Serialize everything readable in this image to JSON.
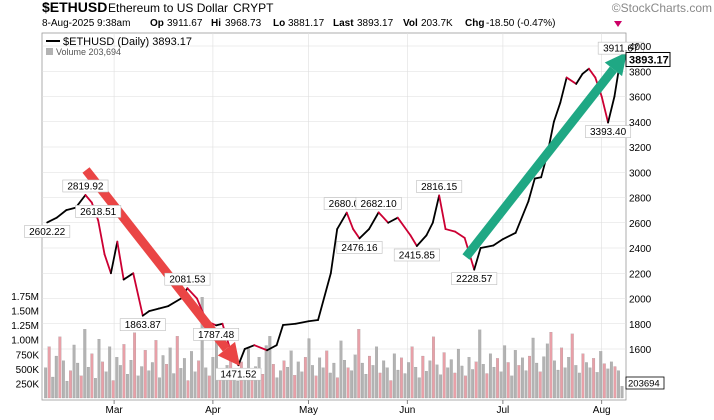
{
  "header": {
    "symbol": "$ETHUSD",
    "name": "Ethereum to US Dollar",
    "exchange": "CRYPT",
    "brand": "©StockCharts.com",
    "quote": {
      "date": "8-Aug-2025 9:38am",
      "op_label": "Op",
      "op": "3911.67",
      "hi_label": "Hi",
      "hi": "3968.73",
      "lo_label": "Lo",
      "lo": "3881.17",
      "last_label": "Last",
      "last": "3893.17",
      "vol_label": "Vol",
      "vol": "203.7K",
      "chg_label": "Chg",
      "chg": "-18.50 (-0.47%)"
    },
    "legend_price": "$ETHUSD (Daily) 3893.17",
    "legend_volume": "Volume 203,694"
  },
  "colors": {
    "price_up": "#000000",
    "price_down": "#cc0033",
    "volume_up": "#b3b3b3",
    "volume_down": "#e8a0a8",
    "red_arrow": "#ea4545",
    "green_arrow": "#1fa884",
    "grid": "#dedede"
  },
  "chart_data": {
    "type": "line",
    "title": "$ETHUSD (Daily) 3893.17",
    "x_axis_labels": [
      "Mar",
      "Apr",
      "May",
      "Jun",
      "Jul",
      "Aug"
    ],
    "y_axis_right": [
      1600,
      1800,
      2000,
      2200,
      2400,
      2600,
      2800,
      3000,
      3200,
      3400,
      3600,
      3800,
      4000
    ],
    "volume_axis_left": [
      "1.75M",
      "1.50M",
      "1.25M",
      "1.00M",
      "750K",
      "500K",
      "250K"
    ],
    "price_series": [
      {
        "date": "2025-02-08",
        "value": 2602.22
      },
      {
        "date": "2025-02-11",
        "value": 2640
      },
      {
        "date": "2025-02-14",
        "value": 2700
      },
      {
        "date": "2025-02-17",
        "value": 2720
      },
      {
        "date": "2025-02-20",
        "value": 2819.92
      },
      {
        "date": "2025-02-22",
        "value": 2760
      },
      {
        "date": "2025-02-24",
        "value": 2618.51
      },
      {
        "date": "2025-02-26",
        "value": 2350
      },
      {
        "date": "2025-02-28",
        "value": 2200
      },
      {
        "date": "2025-03-02",
        "value": 2450
      },
      {
        "date": "2025-03-04",
        "value": 2150
      },
      {
        "date": "2025-03-07",
        "value": 2200
      },
      {
        "date": "2025-03-10",
        "value": 1863.87
      },
      {
        "date": "2025-03-12",
        "value": 1900
      },
      {
        "date": "2025-03-15",
        "value": 1920
      },
      {
        "date": "2025-03-18",
        "value": 1940
      },
      {
        "date": "2025-03-22",
        "value": 2000
      },
      {
        "date": "2025-03-24",
        "value": 2081.53
      },
      {
        "date": "2025-03-27",
        "value": 2000
      },
      {
        "date": "2025-03-30",
        "value": 1820
      },
      {
        "date": "2025-04-02",
        "value": 1787.48
      },
      {
        "date": "2025-04-04",
        "value": 1800
      },
      {
        "date": "2025-04-07",
        "value": 1550
      },
      {
        "date": "2025-04-09",
        "value": 1471.52
      },
      {
        "date": "2025-04-11",
        "value": 1600
      },
      {
        "date": "2025-04-14",
        "value": 1630
      },
      {
        "date": "2025-04-18",
        "value": 1590
      },
      {
        "date": "2025-04-21",
        "value": 1630
      },
      {
        "date": "2025-04-23",
        "value": 1790
      },
      {
        "date": "2025-04-27",
        "value": 1800
      },
      {
        "date": "2025-05-01",
        "value": 1820
      },
      {
        "date": "2025-05-04",
        "value": 1830
      },
      {
        "date": "2025-05-08",
        "value": 2200
      },
      {
        "date": "2025-05-10",
        "value": 2550
      },
      {
        "date": "2025-05-13",
        "value": 2680.04
      },
      {
        "date": "2025-05-15",
        "value": 2550
      },
      {
        "date": "2025-05-17",
        "value": 2476.16
      },
      {
        "date": "2025-05-20",
        "value": 2550
      },
      {
        "date": "2025-05-23",
        "value": 2682.1
      },
      {
        "date": "2025-05-26",
        "value": 2600
      },
      {
        "date": "2025-05-29",
        "value": 2640
      },
      {
        "date": "2025-06-02",
        "value": 2500
      },
      {
        "date": "2025-06-04",
        "value": 2415.85
      },
      {
        "date": "2025-06-07",
        "value": 2500
      },
      {
        "date": "2025-06-09",
        "value": 2600
      },
      {
        "date": "2025-06-11",
        "value": 2816.15
      },
      {
        "date": "2025-06-13",
        "value": 2550
      },
      {
        "date": "2025-06-16",
        "value": 2530
      },
      {
        "date": "2025-06-19",
        "value": 2480
      },
      {
        "date": "2025-06-22",
        "value": 2228.57
      },
      {
        "date": "2025-06-24",
        "value": 2400
      },
      {
        "date": "2025-06-28",
        "value": 2420
      },
      {
        "date": "2025-07-01",
        "value": 2470
      },
      {
        "date": "2025-07-05",
        "value": 2520
      },
      {
        "date": "2025-07-09",
        "value": 2770
      },
      {
        "date": "2025-07-11",
        "value": 2950
      },
      {
        "date": "2025-07-13",
        "value": 2960
      },
      {
        "date": "2025-07-15",
        "value": 3150
      },
      {
        "date": "2025-07-17",
        "value": 3400
      },
      {
        "date": "2025-07-19",
        "value": 3550
      },
      {
        "date": "2025-07-21",
        "value": 3750
      },
      {
        "date": "2025-07-24",
        "value": 3700
      },
      {
        "date": "2025-07-26",
        "value": 3780
      },
      {
        "date": "2025-07-28",
        "value": 3820
      },
      {
        "date": "2025-07-30",
        "value": 3750
      },
      {
        "date": "2025-08-01",
        "value": 3600
      },
      {
        "date": "2025-08-03",
        "value": 3393.4
      },
      {
        "date": "2025-08-05",
        "value": 3600
      },
      {
        "date": "2025-08-07",
        "value": 3911.67
      },
      {
        "date": "2025-08-08",
        "value": 3893.17
      }
    ],
    "annotations": [
      {
        "text": "2602.22",
        "date": "2025-02-08",
        "value": 2602.22,
        "pos": "below"
      },
      {
        "text": "2819.92",
        "date": "2025-02-20",
        "value": 2819.92,
        "pos": "above"
      },
      {
        "text": "2618.51",
        "date": "2025-02-24",
        "value": 2618.51,
        "pos": "above"
      },
      {
        "text": "1863.87",
        "date": "2025-03-10",
        "value": 1863.87,
        "pos": "below"
      },
      {
        "text": "2081.53",
        "date": "2025-03-24",
        "value": 2081.53,
        "pos": "above"
      },
      {
        "text": "1787.48",
        "date": "2025-04-02",
        "value": 1787.48,
        "pos": "below"
      },
      {
        "text": "1471.52",
        "date": "2025-04-09",
        "value": 1471.52,
        "pos": "below"
      },
      {
        "text": "2680.04",
        "date": "2025-05-13",
        "value": 2680.04,
        "pos": "above"
      },
      {
        "text": "2476.16",
        "date": "2025-05-17",
        "value": 2476.16,
        "pos": "below"
      },
      {
        "text": "2682.10",
        "date": "2025-05-23",
        "value": 2682.1,
        "pos": "above"
      },
      {
        "text": "2415.85",
        "date": "2025-06-04",
        "value": 2415.85,
        "pos": "below"
      },
      {
        "text": "2816.15",
        "date": "2025-06-11",
        "value": 2816.15,
        "pos": "above"
      },
      {
        "text": "2228.57",
        "date": "2025-06-22",
        "value": 2228.57,
        "pos": "below"
      },
      {
        "text": "3393.40",
        "date": "2025-08-03",
        "value": 3393.4,
        "pos": "below"
      },
      {
        "text": "3911.67",
        "date": "2025-08-07",
        "value": 3911.67,
        "pos": "above"
      }
    ],
    "last_price_label": "3893.17",
    "last_volume_label": "203694",
    "volume": [
      520,
      880,
      360,
      720,
      1050,
      640,
      290,
      470,
      910,
      600,
      380,
      1180,
      530,
      760,
      340,
      1010,
      620,
      450,
      880,
      300,
      700,
      560,
      920,
      410,
      650,
      1120,
      380,
      540,
      820,
      470,
      610,
      990,
      350,
      730,
      580,
      860,
      420,
      1060,
      510,
      680,
      300,
      800,
      450,
      640,
      1730,
      520,
      380,
      700,
      960,
      420,
      330,
      560,
      740,
      400,
      290,
      620,
      480,
      850,
      360,
      540,
      700,
      410,
      900,
      1060,
      580,
      350,
      470,
      640,
      530,
      810,
      390,
      620,
      450,
      700,
      1020,
      560,
      380,
      690,
      520,
      810,
      430,
      600,
      350,
      980,
      650,
      520,
      470,
      740,
      1180,
      600,
      410,
      720,
      560,
      880,
      430,
      640,
      520,
      300,
      760,
      480,
      690,
      420,
      610,
      880,
      530,
      350,
      720,
      460,
      640,
      1050,
      570,
      400,
      780,
      520,
      660,
      430,
      840,
      550,
      380,
      700,
      490,
      620,
      1170,
      580,
      420,
      760,
      530,
      680,
      450,
      900,
      610,
      380,
      820,
      560,
      690,
      470,
      720,
      1030,
      600,
      450,
      710,
      930,
      1130,
      640,
      480,
      860,
      520,
      700,
      1100,
      560,
      430,
      760,
      610,
      520,
      680,
      440,
      800,
      590,
      500,
      620,
      540,
      470,
      203
    ]
  }
}
